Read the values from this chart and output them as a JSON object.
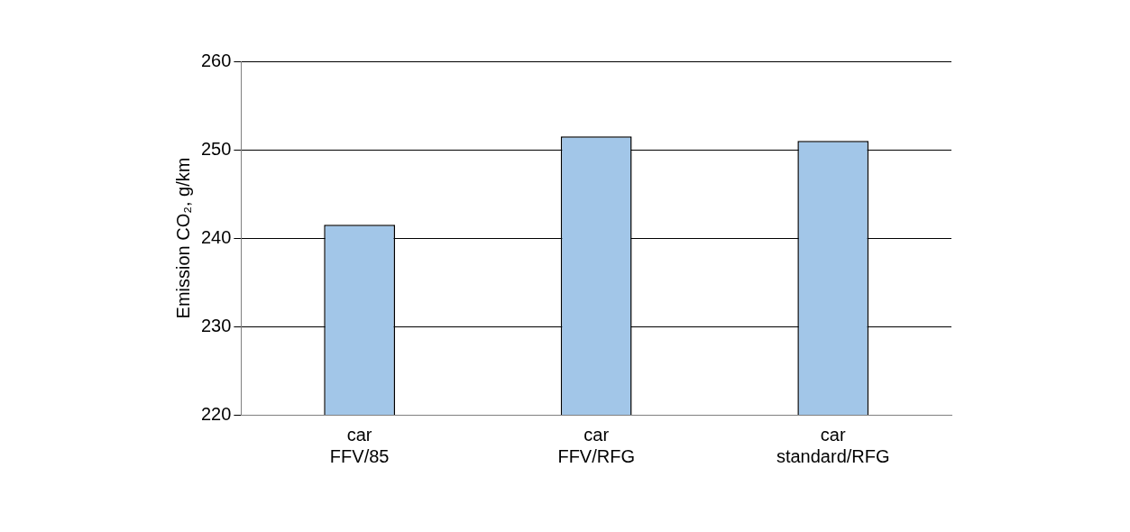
{
  "chart_data": {
    "type": "bar",
    "ylabel": "Emission CO₂, g/km",
    "categories": [
      "car FFV/85",
      "car FFV/RFG",
      "car standard/RFG"
    ],
    "values": [
      241.5,
      251.5,
      251
    ],
    "color": "#a2c6e8",
    "ylim": [
      220,
      260
    ],
    "yticks": [
      220,
      230,
      240,
      250,
      260
    ],
    "grid": "y",
    "legend": false
  }
}
